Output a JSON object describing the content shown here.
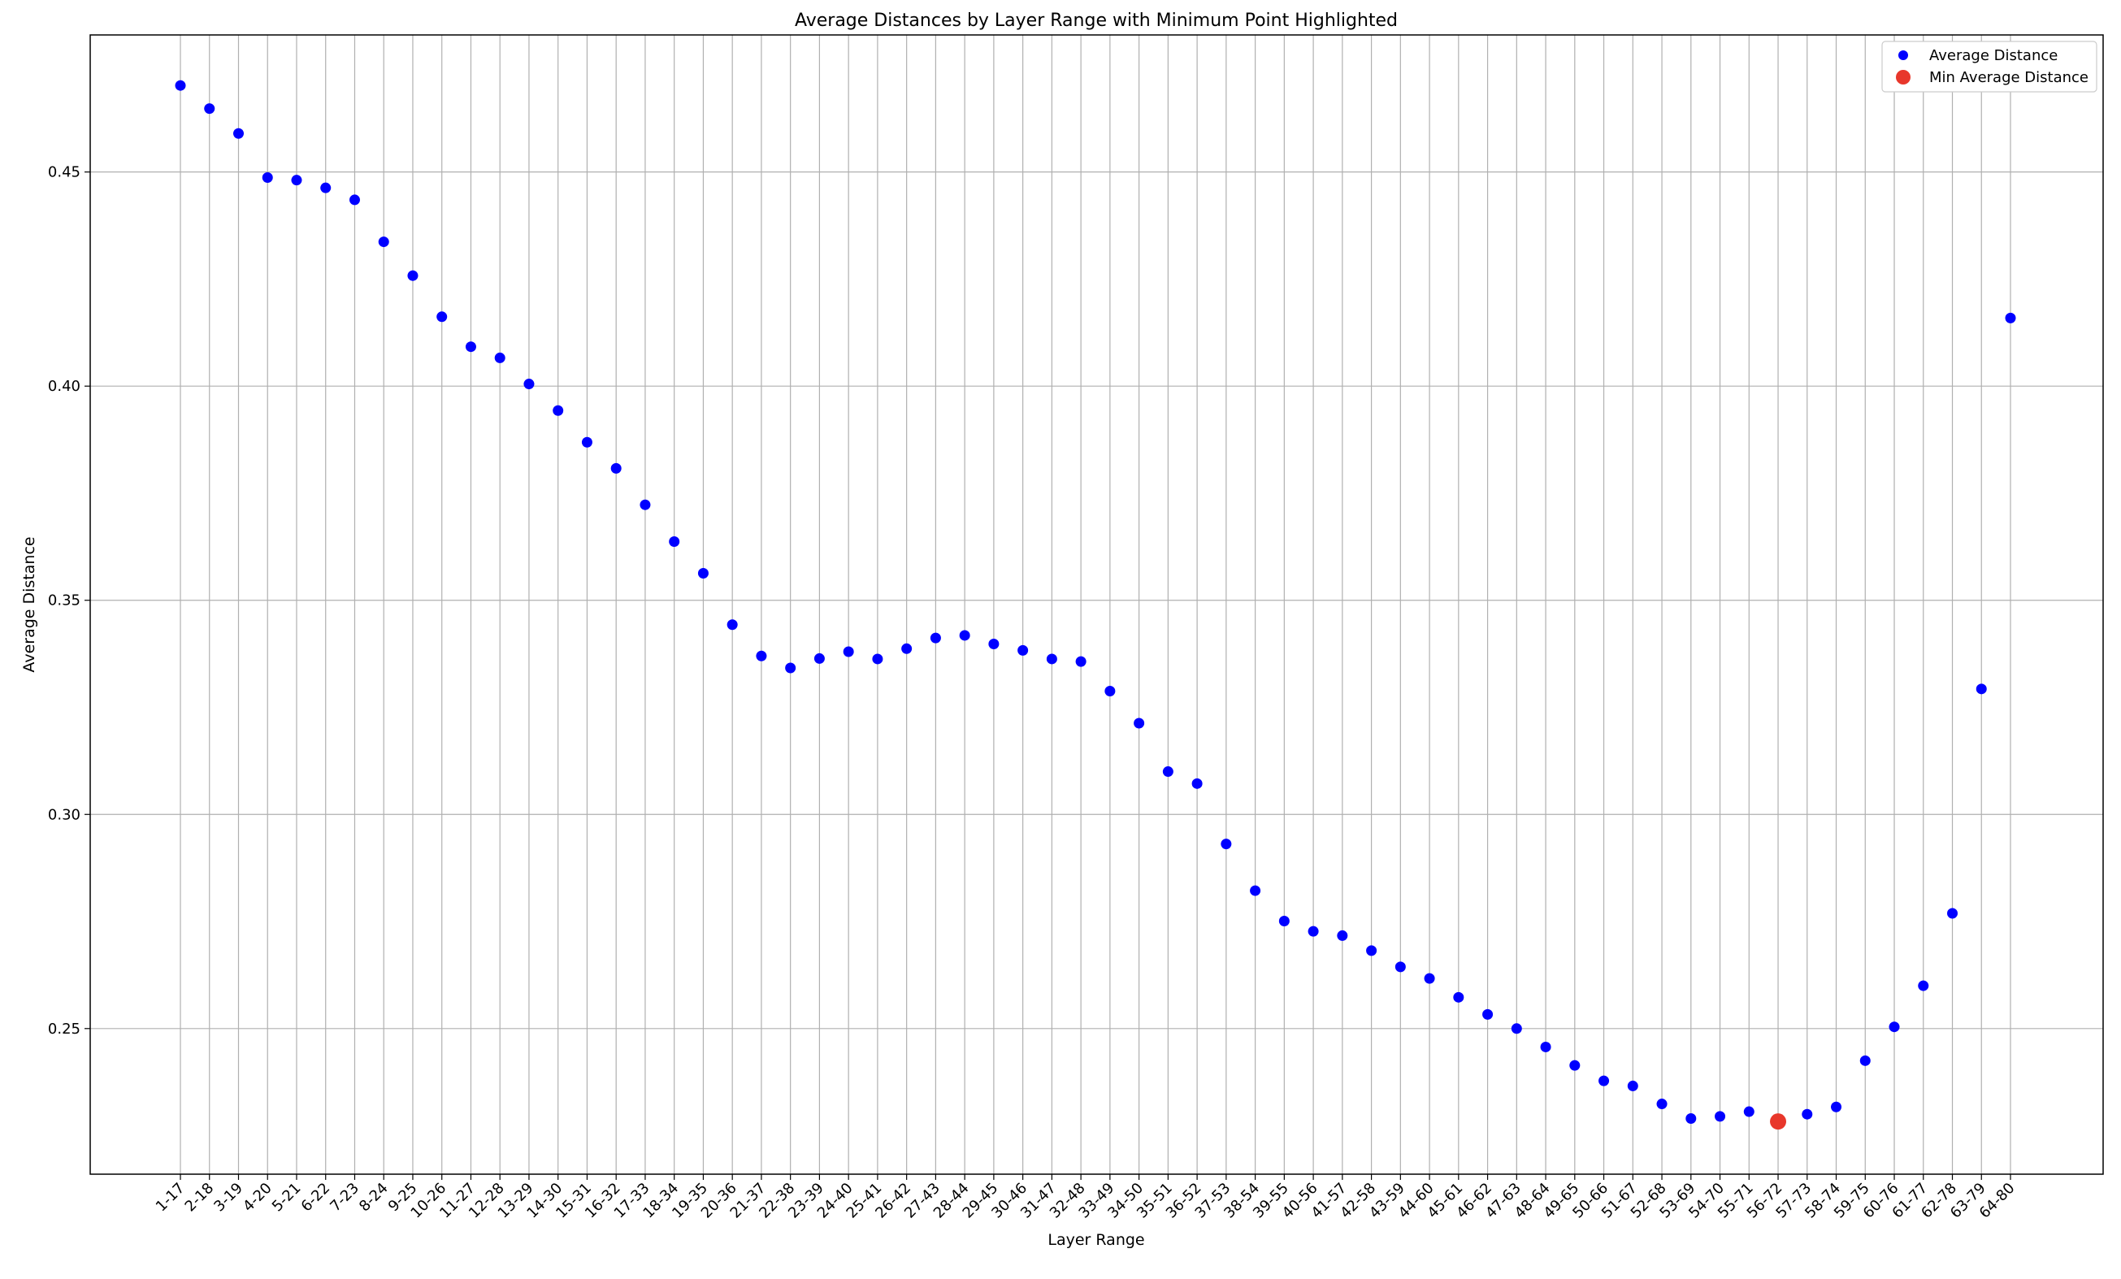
{
  "chart_data": {
    "type": "scatter",
    "title": "Average Distances by Layer Range with Minimum Point Highlighted",
    "xlabel": "Layer Range",
    "ylabel": "Average Distance",
    "ylim": [
      0.216,
      0.482
    ],
    "yticks": [
      "0.25",
      "0.30",
      "0.35",
      "0.40",
      "0.45"
    ],
    "grid": true,
    "legend_position": "top-right",
    "categories": [
      "1-17",
      "2-18",
      "3-19",
      "4-20",
      "5-21",
      "6-22",
      "7-23",
      "8-24",
      "9-25",
      "10-26",
      "11-27",
      "12-28",
      "13-29",
      "14-30",
      "15-31",
      "16-32",
      "17-33",
      "18-34",
      "19-35",
      "20-36",
      "21-37",
      "22-38",
      "23-39",
      "24-40",
      "25-41",
      "26-42",
      "27-43",
      "28-44",
      "29-45",
      "30-46",
      "31-47",
      "32-48",
      "33-49",
      "34-50",
      "35-51",
      "36-52",
      "37-53",
      "38-54",
      "39-55",
      "40-56",
      "41-57",
      "42-58",
      "43-59",
      "44-60",
      "45-61",
      "46-62",
      "47-63",
      "48-64",
      "49-65",
      "50-66",
      "51-67",
      "52-68",
      "53-69",
      "54-70",
      "55-71",
      "56-72",
      "57-73",
      "58-74",
      "59-75",
      "60-76",
      "61-77",
      "62-78",
      "63-79",
      "64-80"
    ],
    "series": [
      {
        "name": "Average Distance",
        "color": "#0000ff",
        "values": [
          0.4702,
          0.4648,
          0.459,
          0.4487,
          0.4481,
          0.4463,
          0.4435,
          0.4337,
          0.4258,
          0.4162,
          0.4092,
          0.4066,
          0.4005,
          0.3943,
          0.3869,
          0.3808,
          0.3723,
          0.3637,
          0.3563,
          0.3443,
          0.337,
          0.3342,
          0.3364,
          0.338,
          0.3363,
          0.3387,
          0.3412,
          0.3418,
          0.3398,
          0.3383,
          0.3363,
          0.3357,
          0.3288,
          0.3213,
          0.31,
          0.3072,
          0.2931,
          0.2822,
          0.2751,
          0.2727,
          0.2717,
          0.2682,
          0.2644,
          0.2617,
          0.2573,
          0.2533,
          0.25,
          0.2457,
          0.2414,
          0.2378,
          0.2366,
          0.2324,
          0.229,
          0.2295,
          0.2306,
          null,
          0.23,
          0.2317,
          0.2425,
          0.2504,
          0.26,
          0.2769,
          0.3293,
          0.4159
        ]
      },
      {
        "name": "Min Average Distance",
        "color": "#e8372b",
        "category": "56-72",
        "value": 0.2283
      }
    ]
  }
}
